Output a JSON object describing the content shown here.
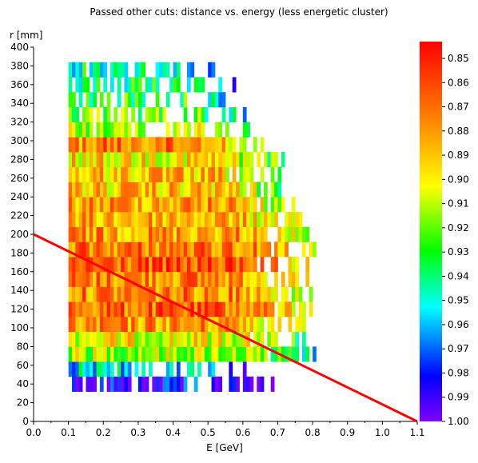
{
  "chart_data": {
    "type": "heatmap",
    "title": "Passed other cuts: distance vs. energy (less energetic cluster)",
    "xlabel": "E [GeV]",
    "ylabel": "r [mm]",
    "xlim": [
      0.0,
      1.1
    ],
    "ylim": [
      0,
      400
    ],
    "x_ticks": [
      "0.0",
      "0.1",
      "0.2",
      "0.3",
      "0.4",
      "0.5",
      "0.6",
      "0.7",
      "0.8",
      "0.9",
      "1.0",
      "1.1"
    ],
    "y_ticks": [
      "0",
      "20",
      "40",
      "60",
      "80",
      "100",
      "120",
      "140",
      "160",
      "180",
      "200",
      "220",
      "240",
      "260",
      "280",
      "300",
      "320",
      "340",
      "360",
      "380",
      "400"
    ],
    "colorbar": {
      "range": [
        0.85,
        1.0
      ],
      "reversed": true,
      "tick_labels": [
        "0.85",
        "0.86",
        "0.87",
        "0.88",
        "0.89",
        "0.90",
        "0.91",
        "0.92",
        "0.93",
        "0.94",
        "0.95",
        "0.96",
        "0.97",
        "0.98",
        "0.99",
        "1.00"
      ]
    },
    "bin_width_gev": 0.01,
    "bin_height_mm": 16,
    "rows": [
      {
        "r": 40,
        "xmin": 0.11,
        "xmax": 0.73,
        "base": 0.985
      },
      {
        "r": 56,
        "xmin": 0.1,
        "xmax": 0.62,
        "base": 0.955
      },
      {
        "r": 72,
        "xmin": 0.1,
        "xmax": 0.81,
        "base": 0.915
      },
      {
        "r": 88,
        "xmin": 0.1,
        "xmax": 0.8,
        "base": 0.905
      },
      {
        "r": 104,
        "xmin": 0.1,
        "xmax": 0.8,
        "base": 0.885
      },
      {
        "r": 120,
        "xmin": 0.1,
        "xmax": 0.8,
        "base": 0.875
      },
      {
        "r": 136,
        "xmin": 0.1,
        "xmax": 0.8,
        "base": 0.88
      },
      {
        "r": 152,
        "xmin": 0.1,
        "xmax": 0.8,
        "base": 0.88
      },
      {
        "r": 168,
        "xmin": 0.1,
        "xmax": 0.81,
        "base": 0.872
      },
      {
        "r": 184,
        "xmin": 0.1,
        "xmax": 0.81,
        "base": 0.878
      },
      {
        "r": 200,
        "xmin": 0.1,
        "xmax": 0.8,
        "base": 0.885
      },
      {
        "r": 216,
        "xmin": 0.1,
        "xmax": 0.79,
        "base": 0.89
      },
      {
        "r": 232,
        "xmin": 0.1,
        "xmax": 0.75,
        "base": 0.885
      },
      {
        "r": 248,
        "xmin": 0.1,
        "xmax": 0.73,
        "base": 0.895
      },
      {
        "r": 264,
        "xmin": 0.1,
        "xmax": 0.72,
        "base": 0.895
      },
      {
        "r": 280,
        "xmin": 0.1,
        "xmax": 0.72,
        "base": 0.9
      },
      {
        "r": 296,
        "xmin": 0.1,
        "xmax": 0.68,
        "base": 0.88
      },
      {
        "r": 312,
        "xmin": 0.1,
        "xmax": 0.64,
        "base": 0.915
      },
      {
        "r": 328,
        "xmin": 0.1,
        "xmax": 0.61,
        "base": 0.925
      },
      {
        "r": 344,
        "xmin": 0.1,
        "xmax": 0.62,
        "base": 0.935
      },
      {
        "r": 360,
        "xmin": 0.1,
        "xmax": 0.62,
        "base": 0.94
      },
      {
        "r": 376,
        "xmin": 0.1,
        "xmax": 0.57,
        "base": 0.945
      }
    ],
    "cut_line": {
      "x": [
        0.0,
        1.1
      ],
      "y": [
        200,
        0
      ],
      "color": "#ff0000"
    }
  }
}
